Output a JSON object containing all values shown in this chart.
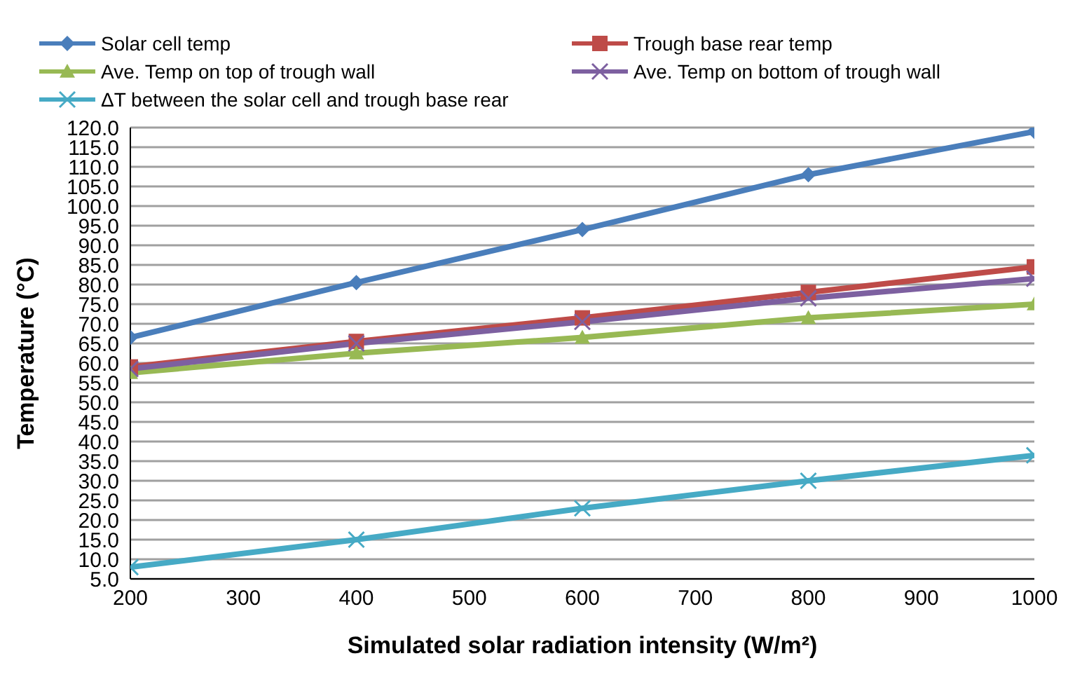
{
  "chart_data": {
    "type": "line",
    "xlabel": "Simulated solar radiation intensity (W/m²)",
    "ylabel": "Temperature (°C)",
    "x": [
      200,
      400,
      600,
      800,
      1000
    ],
    "series": [
      {
        "name": "Solar cell temp",
        "color": "#4a7ebb",
        "marker": "diamond",
        "values": [
          66.5,
          80.5,
          94,
          108,
          119
        ]
      },
      {
        "name": "Trough base rear temp",
        "color": "#be4b48",
        "marker": "square",
        "values": [
          59,
          65.5,
          71.5,
          78,
          84.5
        ]
      },
      {
        "name": "Ave. Temp on top of trough wall",
        "color": "#98b954",
        "marker": "triangle",
        "values": [
          57.5,
          62.5,
          66.5,
          71.5,
          75
        ]
      },
      {
        "name": "Ave. Temp on bottom of trough wall",
        "color": "#7d60a0",
        "marker": "cross",
        "values": [
          58.5,
          65,
          70.5,
          76.5,
          81.5
        ]
      },
      {
        "name": "ΔT between the solar cell and trough base rear",
        "color": "#46aac5",
        "marker": "cross",
        "values": [
          8,
          15,
          23,
          30,
          36.5
        ]
      }
    ],
    "xlim": [
      200,
      1000
    ],
    "xticks": [
      200,
      300,
      400,
      500,
      600,
      700,
      800,
      900,
      1000
    ],
    "ylim": [
      5,
      120
    ],
    "yticks": [
      {
        "value": 5,
        "label": "5.0"
      },
      {
        "value": 10,
        "label": "10.0"
      },
      {
        "value": 15,
        "label": "15.0"
      },
      {
        "value": 20,
        "label": "20.0"
      },
      {
        "value": 25,
        "label": "25.0"
      },
      {
        "value": 30,
        "label": "30.0"
      },
      {
        "value": 35,
        "label": "35.0"
      },
      {
        "value": 40,
        "label": "40.0"
      },
      {
        "value": 45,
        "label": "45.0"
      },
      {
        "value": 50,
        "label": "50.0"
      },
      {
        "value": 55,
        "label": "55.0"
      },
      {
        "value": 60,
        "label": "60.0"
      },
      {
        "value": 65,
        "label": "65.0"
      },
      {
        "value": 70,
        "label": "70.0"
      },
      {
        "value": 75,
        "label": "75.0"
      },
      {
        "value": 80,
        "label": "80.0"
      },
      {
        "value": 85,
        "label": "85.0"
      },
      {
        "value": 90,
        "label": "90.0"
      },
      {
        "value": 95,
        "label": "95.0"
      },
      {
        "value": 100,
        "label": "100.0"
      },
      {
        "value": 105,
        "label": "105.0"
      },
      {
        "value": 110,
        "label": "110.0"
      },
      {
        "value": 115,
        "label": "115.0"
      },
      {
        "value": 120,
        "label": "120.0"
      }
    ],
    "grid": "y",
    "legend": "top",
    "line_style": "solid"
  }
}
